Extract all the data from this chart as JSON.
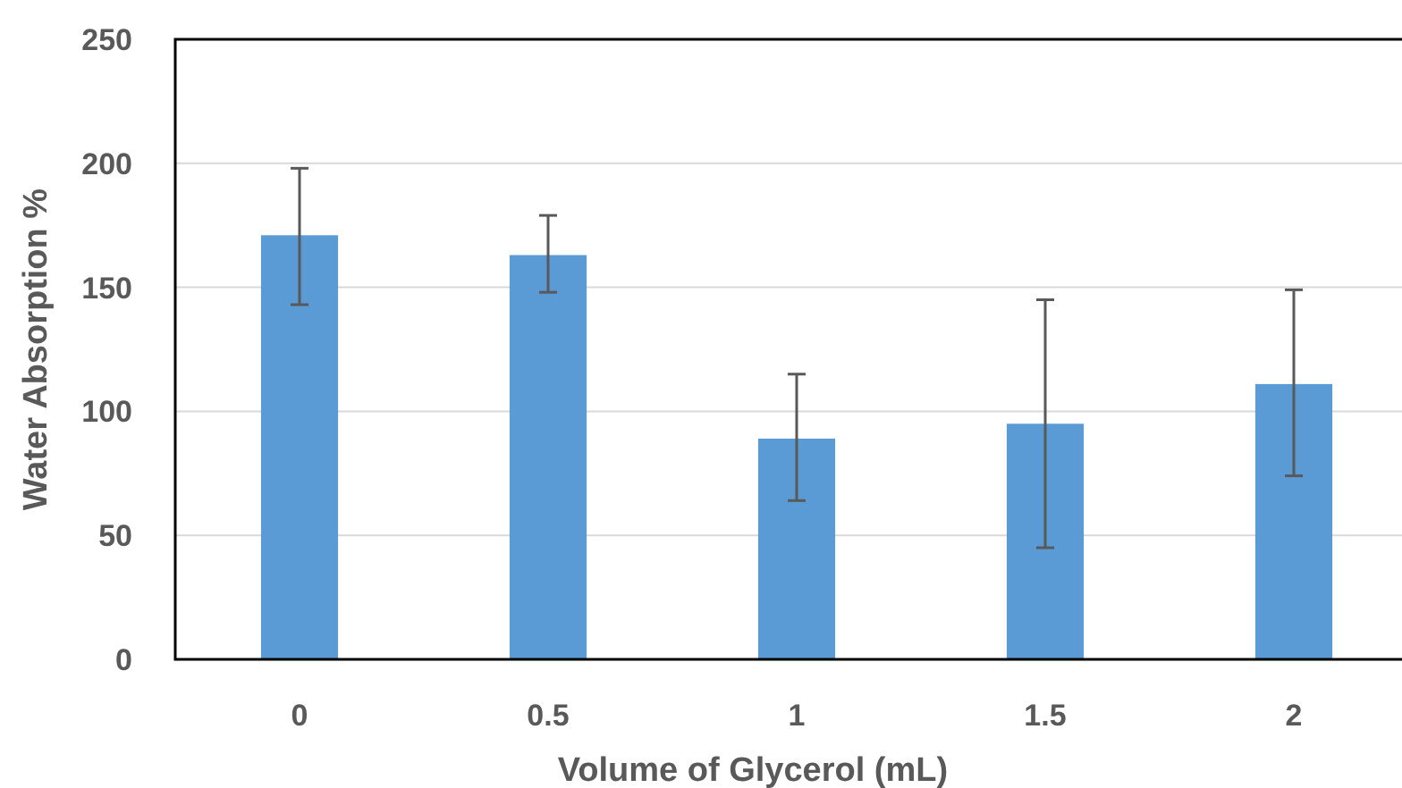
{
  "chart_data": {
    "type": "bar",
    "xlabel": "Volume of Glycerol (mL)",
    "ylabel": "Water Absorption %",
    "categories": [
      "0",
      "0.5",
      "1",
      "1.5",
      "2"
    ],
    "values": [
      171,
      163,
      89,
      95,
      111
    ],
    "errors": [
      [
        143,
        198
      ],
      [
        148,
        179
      ],
      [
        64,
        115
      ],
      [
        45,
        145
      ],
      [
        74,
        149
      ]
    ],
    "color": "#5b9bd5",
    "ylim": [
      0,
      250
    ],
    "yticks": [
      0,
      50,
      100,
      150,
      200,
      250
    ],
    "grid": "y"
  }
}
